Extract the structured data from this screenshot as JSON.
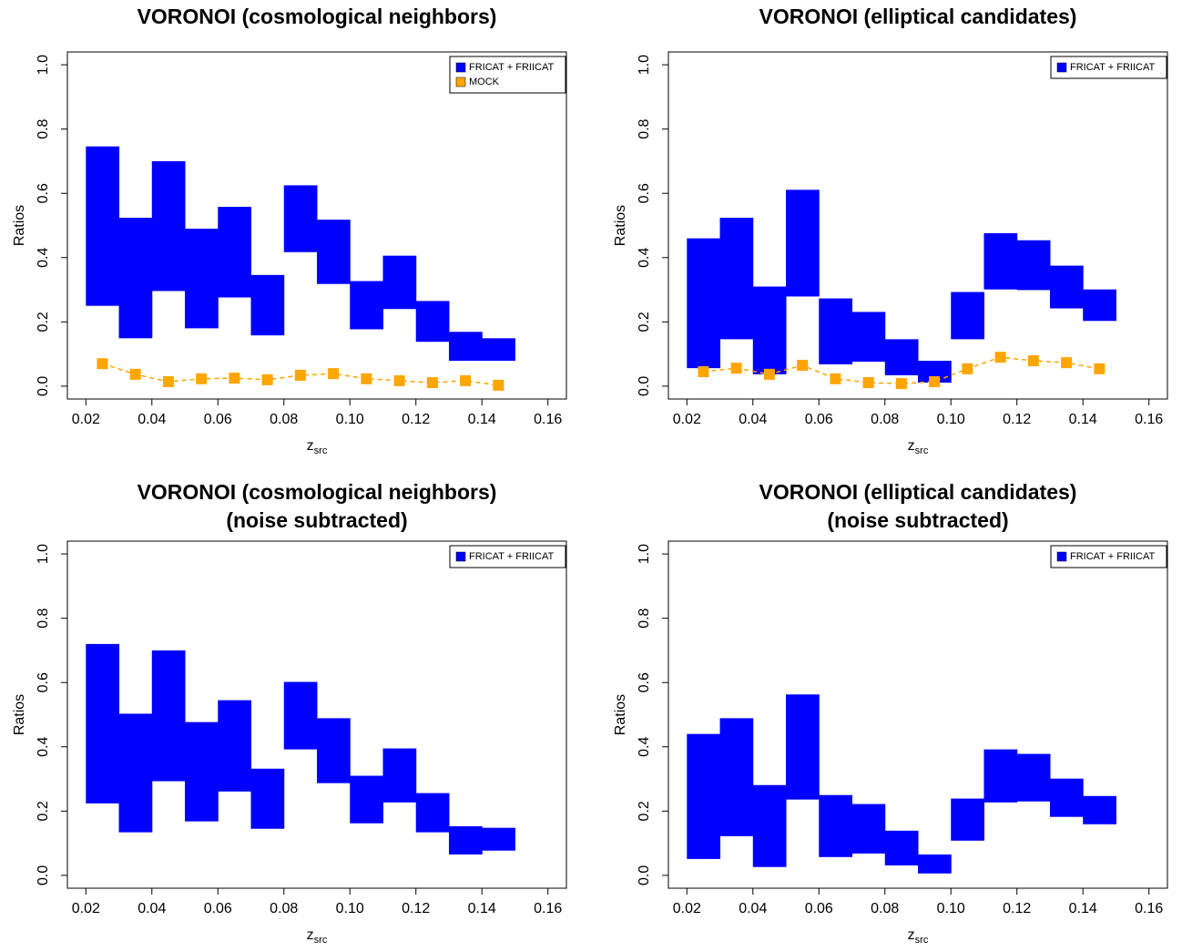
{
  "chart_data": [
    {
      "type": "range-bar",
      "title": "VORONOI (cosmological neighbors)",
      "ylabel": "Ratios",
      "xlabel": {
        "text": "z",
        "subscript": "src"
      },
      "xlim": [
        0.0144,
        0.1656
      ],
      "xticks": [
        0.02,
        0.04,
        0.06,
        0.08,
        {
          "value": 0.1,
          "label": "0.10"
        },
        0.12,
        0.14,
        0.16
      ],
      "ylim": [
        -0.04,
        1.04
      ],
      "yticks": [
        {
          "value": 0,
          "label": "0.0"
        },
        0.2,
        0.4,
        0.6,
        0.8,
        {
          "value": 1,
          "label": "1.0"
        }
      ],
      "legend": "top-right",
      "bins": [
        0.02,
        0.03,
        0.04,
        0.05,
        0.06,
        0.07,
        0.08,
        0.09,
        0.1,
        0.11,
        0.12,
        0.13,
        0.14,
        0.15
      ],
      "series": [
        {
          "name": "FRICAT + FRIICAT",
          "color": "#0000ff",
          "lower": [
            0.25,
            0.149,
            0.296,
            0.18,
            0.276,
            0.158,
            0.417,
            0.318,
            0.177,
            0.24,
            0.138,
            0.079,
            0.079
          ],
          "upper": [
            0.746,
            0.524,
            0.7,
            0.49,
            0.558,
            0.346,
            0.625,
            0.518,
            0.327,
            0.406,
            0.265,
            0.169,
            0.149
          ]
        },
        {
          "name": "MOCK",
          "color": "#ffa500",
          "x": [
            0.025,
            0.035,
            0.045,
            0.055,
            0.065,
            0.075,
            0.085,
            0.095,
            0.105,
            0.115,
            0.125,
            0.135,
            0.145
          ],
          "values": [
            0.07,
            0.037,
            0.014,
            0.023,
            0.025,
            0.02,
            0.034,
            0.039,
            0.023,
            0.017,
            0.011,
            0.017,
            0.003
          ]
        }
      ]
    },
    {
      "type": "range-bar",
      "title": "VORONOI (elliptical candidates)",
      "ylabel": "Ratios",
      "xlabel": {
        "text": "z",
        "subscript": "src"
      },
      "xlim": [
        0.0144,
        0.1656
      ],
      "xticks": [
        0.02,
        0.04,
        0.06,
        0.08,
        {
          "value": 0.1,
          "label": "0.10"
        },
        0.12,
        0.14,
        0.16
      ],
      "ylim": [
        -0.04,
        1.04
      ],
      "yticks": [
        {
          "value": 0,
          "label": "0.0"
        },
        0.2,
        0.4,
        0.6,
        0.8,
        {
          "value": 1,
          "label": "1.0"
        }
      ],
      "legend": "top-right",
      "bins": [
        0.02,
        0.03,
        0.04,
        0.05,
        0.06,
        0.07,
        0.08,
        0.09,
        0.1,
        0.11,
        0.12,
        0.13,
        0.14,
        0.15
      ],
      "series": [
        {
          "name": "FRICAT + FRIICAT",
          "color": "#0000ff",
          "lower": [
            0.056,
            0.146,
            0.037,
            0.279,
            0.068,
            0.076,
            0.034,
            0.011,
            0.146,
            0.301,
            0.299,
            0.242,
            0.203
          ],
          "upper": [
            0.46,
            0.524,
            0.31,
            0.611,
            0.273,
            0.231,
            0.146,
            0.079,
            0.293,
            0.476,
            0.454,
            0.375,
            0.301
          ]
        },
        {
          "color": "#ffa500",
          "x": [
            0.025,
            0.035,
            0.045,
            0.055,
            0.065,
            0.075,
            0.085,
            0.095,
            0.105,
            0.115,
            0.125,
            0.135,
            0.145
          ],
          "values": [
            0.045,
            0.056,
            0.037,
            0.065,
            0.023,
            0.011,
            0.008,
            0.014,
            0.054,
            0.09,
            0.079,
            0.073,
            0.054
          ]
        }
      ]
    },
    {
      "type": "range-bar",
      "title": "VORONOI (cosmological neighbors)",
      "subtitle": "(noise subtracted)",
      "ylabel": "Ratios",
      "xlabel": {
        "text": "z",
        "subscript": "src"
      },
      "xlim": [
        0.0144,
        0.1656
      ],
      "xticks": [
        0.02,
        0.04,
        0.06,
        0.08,
        {
          "value": 0.1,
          "label": "0.10"
        },
        0.12,
        0.14,
        0.16
      ],
      "ylim": [
        -0.04,
        1.04
      ],
      "yticks": [
        {
          "value": 0,
          "label": "0.0"
        },
        0.2,
        0.4,
        0.6,
        0.8,
        {
          "value": 1,
          "label": "1.0"
        }
      ],
      "legend": "top-right",
      "bins": [
        0.02,
        0.03,
        0.04,
        0.05,
        0.06,
        0.07,
        0.08,
        0.09,
        0.1,
        0.11,
        0.12,
        0.13,
        0.14,
        0.15
      ],
      "series": [
        {
          "name": "FRICAT + FRIICAT",
          "color": "#0000ff",
          "lower": [
            0.224,
            0.134,
            0.293,
            0.168,
            0.261,
            0.145,
            0.392,
            0.287,
            0.162,
            0.227,
            0.134,
            0.065,
            0.077
          ],
          "upper": [
            0.72,
            0.503,
            0.7,
            0.477,
            0.545,
            0.332,
            0.602,
            0.489,
            0.31,
            0.395,
            0.256,
            0.153,
            0.148
          ]
        }
      ]
    },
    {
      "type": "range-bar",
      "title": "VORONOI (elliptical candidates)",
      "subtitle": "(noise subtracted)",
      "ylabel": "Ratios",
      "xlabel": {
        "text": "z",
        "subscript": "src"
      },
      "xlim": [
        0.0144,
        0.1656
      ],
      "xticks": [
        0.02,
        0.04,
        0.06,
        0.08,
        {
          "value": 0.1,
          "label": "0.10"
        },
        0.12,
        0.14,
        0.16
      ],
      "ylim": [
        -0.04,
        1.04
      ],
      "yticks": [
        {
          "value": 0,
          "label": "0.0"
        },
        0.2,
        0.4,
        0.6,
        0.8,
        {
          "value": 1,
          "label": "1.0"
        }
      ],
      "legend": "top-right",
      "bins": [
        0.02,
        0.03,
        0.04,
        0.05,
        0.06,
        0.07,
        0.08,
        0.09,
        0.1,
        0.11,
        0.12,
        0.13,
        0.14,
        0.15
      ],
      "series": [
        {
          "name": "FRICAT + FRIICAT",
          "color": "#0000ff",
          "lower": [
            0.051,
            0.122,
            0.026,
            0.236,
            0.057,
            0.068,
            0.031,
            0.006,
            0.108,
            0.227,
            0.23,
            0.182,
            0.159
          ],
          "upper": [
            0.44,
            0.489,
            0.281,
            0.563,
            0.25,
            0.222,
            0.139,
            0.065,
            0.239,
            0.392,
            0.378,
            0.301,
            0.247
          ]
        }
      ]
    }
  ]
}
